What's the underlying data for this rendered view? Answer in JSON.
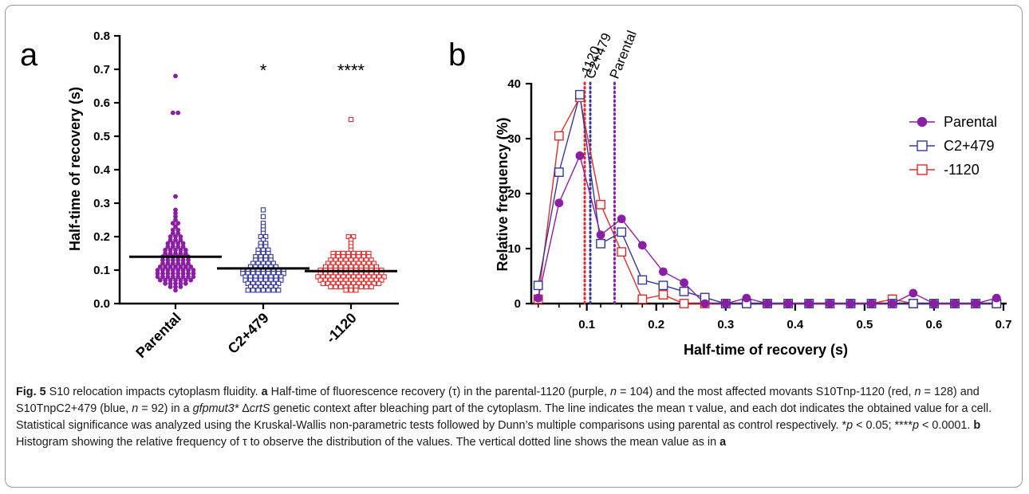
{
  "figure": {
    "fig_label": "Fig. 5",
    "title": "S10 relocation impacts cytoplasm fluidity."
  },
  "panel_a": {
    "letter": "a",
    "ylabel": "Half-time of recovery (s)",
    "yticks": [
      "0.0",
      "0.1",
      "0.2",
      "0.3",
      "0.4",
      "0.5",
      "0.6",
      "0.7",
      "0.8"
    ],
    "significance": [
      "",
      "*",
      "****"
    ]
  },
  "panel_b": {
    "letter": "b",
    "ylabel": "Relative frequency (%)",
    "xlabel": "Half-time of recovery (s)",
    "yticks": [
      "0",
      "10",
      "20",
      "30",
      "40"
    ],
    "xticks": [
      "0.1",
      "0.2",
      "0.3",
      "0.4",
      "0.5",
      "0.6",
      "0.7"
    ],
    "mean_labels": [
      "-1120",
      "C2+479",
      "Parental"
    ]
  },
  "caption": {
    "a_letter": "a",
    "text_a1": " Half-time of fluorescence recovery (τ) in the parental-1120 (purple, ",
    "n_var": "n",
    "text_a2": " = 104) and the most affected movants S10Tnp-1120 (red, ",
    "text_a3": " = 128) and S10TnpC2+479 (blue, ",
    "text_a4": " = 92) in a ",
    "gene": "gfpmut3*",
    "delta": " Δ",
    "crts": "crtS",
    "text_a5": " genetic context after bleaching part of the cytoplasm. The line indicates the mean τ value, and each dot indicates the obtained value for a cell. Statistical significance was analyzed using the Kruskal-Wallis non-parametric tests followed by Dunn’s multiple comparisons using parental as control respectively. *",
    "p_var": "p",
    "text_a6": " < 0.05; ****",
    "text_a7": " < 0.0001. ",
    "b_letter": "b",
    "text_b": " Histogram showing the relative frequency of τ to observe the distribution of the values. The vertical dotted line shows the mean value as in ",
    "a_ref": "a"
  },
  "chart_data": [
    {
      "type": "scatter",
      "categories": [
        "Parental",
        "C2+479",
        "-1120"
      ],
      "ylabel": "Half-time of recovery (s)",
      "ylim": [
        0,
        0.8
      ],
      "colors": [
        "#8B1FA3",
        "#35389A",
        "#E02B2B"
      ],
      "markers": [
        "filled-circle",
        "open-square",
        "open-square"
      ],
      "n": [
        104,
        92,
        128
      ],
      "means": [
        0.14,
        0.105,
        0.097
      ],
      "significance": [
        "",
        "*",
        "****"
      ],
      "series": [
        {
          "category": "Parental",
          "values": [
            0.68,
            0.57,
            0.57,
            0.32,
            0.28,
            0.27,
            0.26,
            0.25,
            0.24,
            0.24,
            0.23,
            0.22,
            0.22,
            0.21,
            0.21,
            0.2,
            0.2,
            0.2,
            0.19,
            0.19,
            0.19,
            0.18,
            0.18,
            0.18,
            0.18,
            0.17,
            0.17,
            0.17,
            0.17,
            0.16,
            0.16,
            0.16,
            0.16,
            0.16,
            0.15,
            0.15,
            0.15,
            0.15,
            0.15,
            0.14,
            0.14,
            0.14,
            0.14,
            0.14,
            0.14,
            0.13,
            0.13,
            0.13,
            0.13,
            0.13,
            0.13,
            0.12,
            0.12,
            0.12,
            0.12,
            0.12,
            0.12,
            0.11,
            0.11,
            0.11,
            0.11,
            0.11,
            0.11,
            0.11,
            0.1,
            0.1,
            0.1,
            0.1,
            0.1,
            0.1,
            0.1,
            0.1,
            0.09,
            0.09,
            0.09,
            0.09,
            0.09,
            0.09,
            0.09,
            0.09,
            0.08,
            0.08,
            0.08,
            0.08,
            0.08,
            0.08,
            0.08,
            0.08,
            0.07,
            0.07,
            0.07,
            0.07,
            0.07,
            0.07,
            0.07,
            0.06,
            0.06,
            0.06,
            0.06,
            0.06,
            0.05,
            0.05,
            0.05,
            0.04
          ]
        },
        {
          "category": "C2+479",
          "values": [
            0.28,
            0.26,
            0.24,
            0.23,
            0.22,
            0.21,
            0.2,
            0.2,
            0.19,
            0.18,
            0.18,
            0.17,
            0.17,
            0.16,
            0.16,
            0.16,
            0.15,
            0.15,
            0.15,
            0.14,
            0.14,
            0.14,
            0.14,
            0.13,
            0.13,
            0.13,
            0.13,
            0.12,
            0.12,
            0.12,
            0.12,
            0.12,
            0.11,
            0.11,
            0.11,
            0.11,
            0.11,
            0.11,
            0.1,
            0.1,
            0.1,
            0.1,
            0.1,
            0.1,
            0.1,
            0.1,
            0.1,
            0.09,
            0.09,
            0.09,
            0.09,
            0.09,
            0.09,
            0.09,
            0.09,
            0.09,
            0.08,
            0.08,
            0.08,
            0.08,
            0.08,
            0.08,
            0.08,
            0.08,
            0.07,
            0.07,
            0.07,
            0.07,
            0.07,
            0.07,
            0.07,
            0.07,
            0.06,
            0.06,
            0.06,
            0.06,
            0.06,
            0.06,
            0.06,
            0.05,
            0.05,
            0.05,
            0.05,
            0.05,
            0.05,
            0.04,
            0.04,
            0.04,
            0.04,
            0.04,
            0.04,
            0.04
          ]
        },
        {
          "category": "-1120",
          "values": [
            0.55,
            0.2,
            0.2,
            0.19,
            0.18,
            0.17,
            0.16,
            0.15,
            0.15,
            0.15,
            0.15,
            0.15,
            0.15,
            0.15,
            0.15,
            0.14,
            0.14,
            0.14,
            0.14,
            0.14,
            0.14,
            0.14,
            0.14,
            0.13,
            0.13,
            0.13,
            0.13,
            0.13,
            0.13,
            0.13,
            0.13,
            0.13,
            0.12,
            0.12,
            0.12,
            0.12,
            0.12,
            0.12,
            0.12,
            0.12,
            0.12,
            0.12,
            0.11,
            0.11,
            0.11,
            0.11,
            0.11,
            0.11,
            0.11,
            0.11,
            0.11,
            0.11,
            0.11,
            0.1,
            0.1,
            0.1,
            0.1,
            0.1,
            0.1,
            0.1,
            0.1,
            0.1,
            0.1,
            0.1,
            0.1,
            0.1,
            0.09,
            0.09,
            0.09,
            0.09,
            0.09,
            0.09,
            0.09,
            0.09,
            0.09,
            0.09,
            0.09,
            0.09,
            0.09,
            0.08,
            0.08,
            0.08,
            0.08,
            0.08,
            0.08,
            0.08,
            0.08,
            0.08,
            0.08,
            0.08,
            0.08,
            0.08,
            0.08,
            0.07,
            0.07,
            0.07,
            0.07,
            0.07,
            0.07,
            0.07,
            0.07,
            0.07,
            0.07,
            0.07,
            0.07,
            0.07,
            0.06,
            0.06,
            0.06,
            0.06,
            0.06,
            0.06,
            0.06,
            0.06,
            0.06,
            0.06,
            0.06,
            0.06,
            0.05,
            0.05,
            0.05,
            0.05,
            0.05,
            0.05,
            0.05,
            0.05,
            0.05,
            0.04,
            0.04,
            0.04
          ]
        }
      ]
    },
    {
      "type": "line",
      "xlabel": "Half-time of recovery (s)",
      "ylabel": "Relative frequency (%)",
      "xlim": [
        0.02,
        0.7
      ],
      "ylim": [
        0,
        40
      ],
      "x": [
        0.03,
        0.06,
        0.09,
        0.12,
        0.15,
        0.18,
        0.21,
        0.24,
        0.27,
        0.3,
        0.33,
        0.36,
        0.39,
        0.42,
        0.45,
        0.48,
        0.51,
        0.54,
        0.57,
        0.6,
        0.63,
        0.66,
        0.69
      ],
      "series": [
        {
          "name": "Parental",
          "color": "#8B1FA3",
          "marker": "filled-circle",
          "values": [
            1,
            18.3,
            26.9,
            12.5,
            15.4,
            10.6,
            5.8,
            3.8,
            0,
            0,
            1,
            0,
            0,
            0,
            0,
            0,
            0,
            0,
            1.9,
            0,
            0,
            0,
            1
          ]
        },
        {
          "name": "C2+479",
          "color": "#35389A",
          "marker": "open-square",
          "values": [
            3.3,
            23.9,
            38,
            10.9,
            13,
            4.3,
            3.3,
            2.2,
            1.1,
            0,
            0,
            0,
            0,
            0,
            0,
            0,
            0,
            0,
            0,
            0,
            0,
            0,
            0
          ]
        },
        {
          "name": "-1120",
          "color": "#E02B2B",
          "marker": "open-square",
          "values": [
            0.8,
            30.5,
            37.5,
            18,
            9.4,
            0.8,
            1.6,
            0,
            0,
            0,
            0,
            0,
            0,
            0,
            0,
            0,
            0,
            0.8,
            0,
            0,
            0,
            0,
            0
          ]
        }
      ],
      "mean_lines": [
        {
          "label": "-1120",
          "value": 0.097,
          "color": "#E02B2B"
        },
        {
          "label": "C2+479",
          "value": 0.105,
          "color": "#35389A"
        },
        {
          "label": "Parental",
          "value": 0.14,
          "color": "#8B1FA3"
        }
      ],
      "legend": "top-right"
    }
  ]
}
